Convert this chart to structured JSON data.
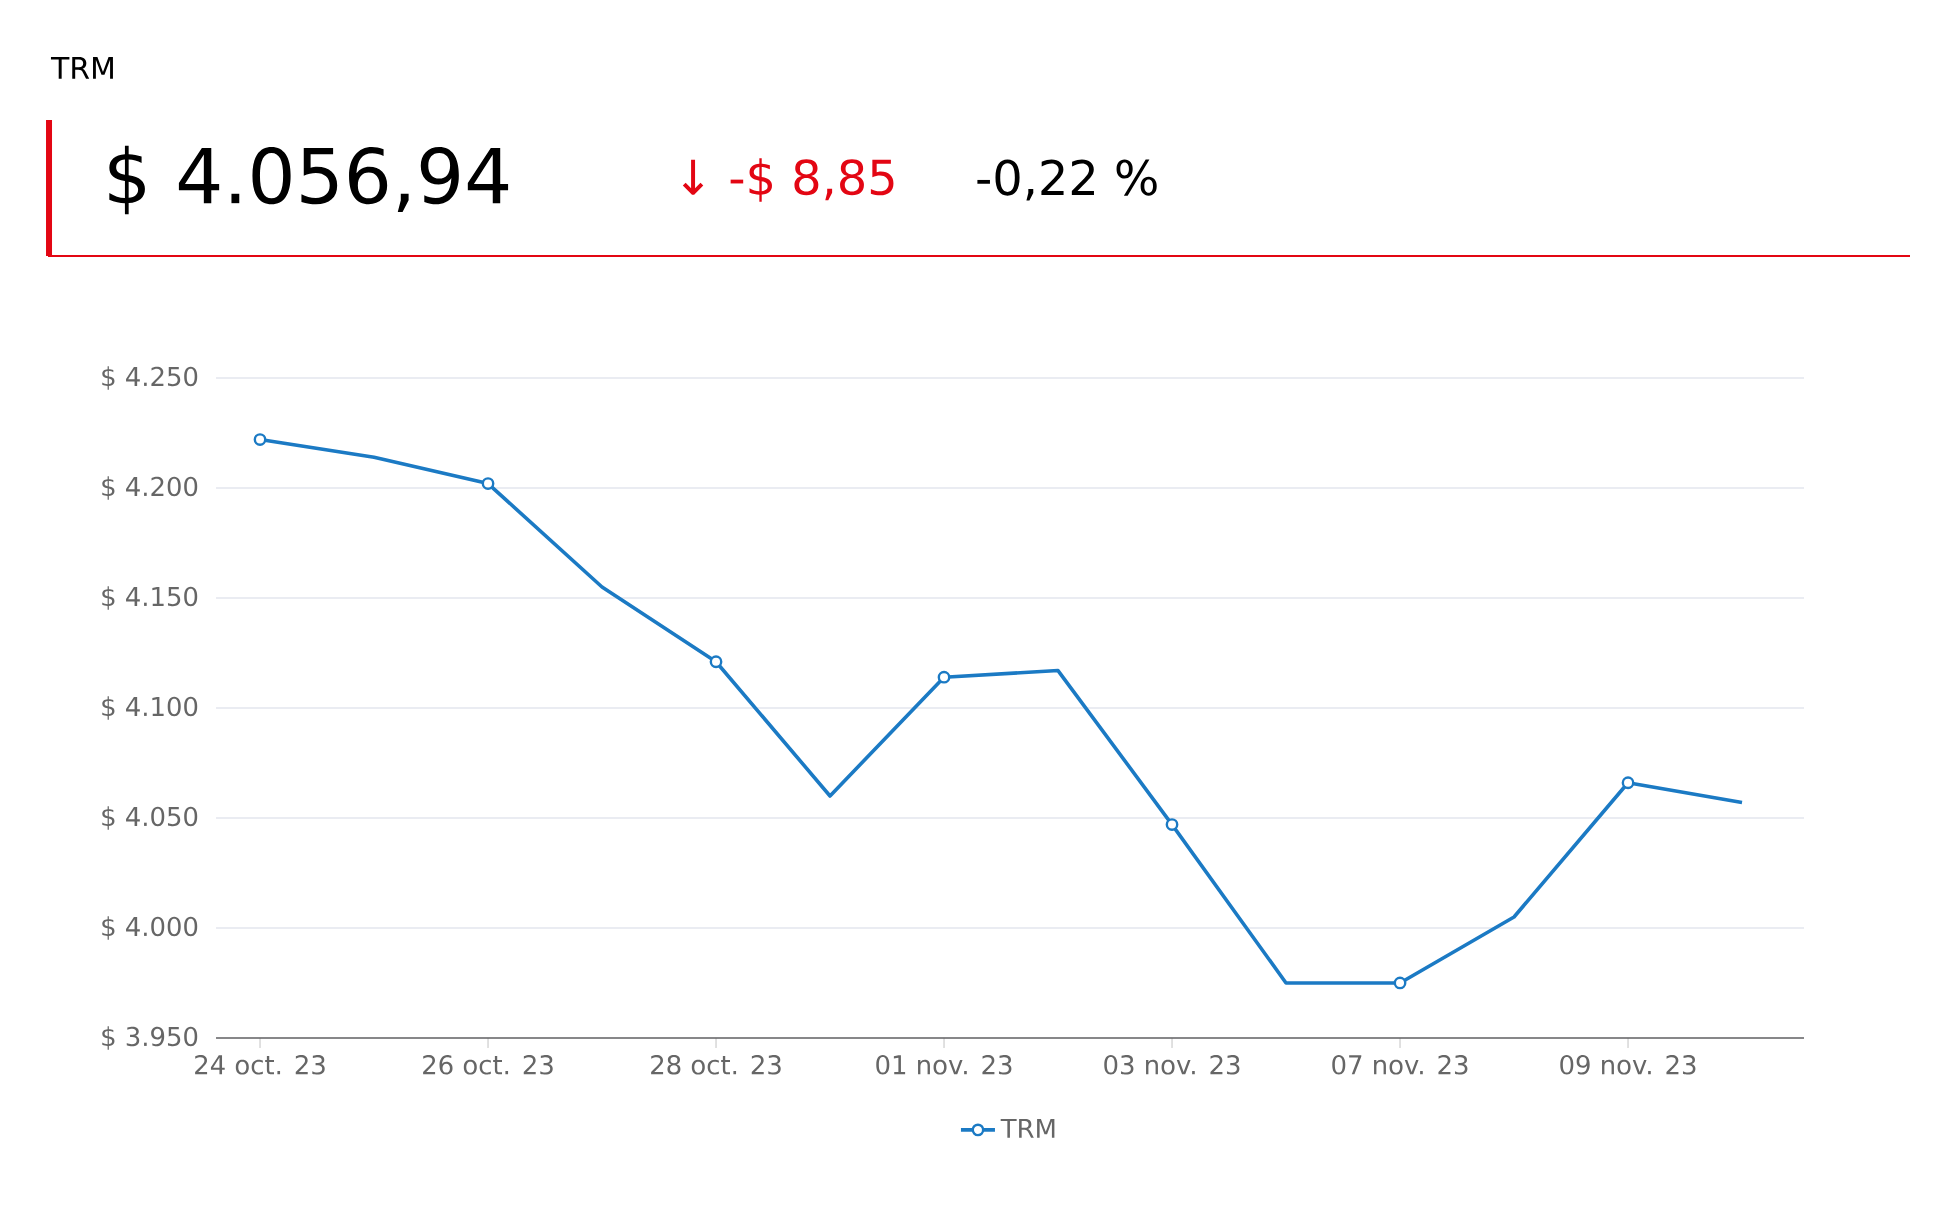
{
  "chart_data": {
    "type": "line",
    "title": "TRM",
    "annotations": [
      "$ 4.056,94",
      "↓ -$ 8,85",
      "-0,22 %"
    ],
    "categories": [
      "24 oct. 23",
      null,
      "26 oct. 23",
      null,
      "28 oct. 23",
      null,
      "01 nov. 23",
      null,
      "03 nov. 23",
      null,
      "07 nov. 23",
      null,
      "09 nov. 23",
      null
    ],
    "series": [
      {
        "name": "TRM",
        "color": "#1b7ac4",
        "values": [
          4222,
          4214,
          4202,
          4155,
          4121,
          4060,
          4114,
          4117,
          4047,
          3975,
          3975,
          4005,
          4066,
          4057
        ]
      }
    ],
    "ylim": [
      3950,
      4250
    ],
    "yticks": [
      {
        "value": 3950,
        "label": "$ 3.950"
      },
      {
        "value": 4000,
        "label": "$ 4.000"
      },
      {
        "value": 4050,
        "label": "$ 4.050"
      },
      {
        "value": 4100,
        "label": "$ 4.100"
      },
      {
        "value": 4150,
        "label": "$ 4.150"
      },
      {
        "value": 4200,
        "label": "$ 4.200"
      },
      {
        "value": 4250,
        "label": "$ 4.250"
      }
    ],
    "grid": "y",
    "legend": "bottom",
    "marker": "circle",
    "line_style": "solid"
  }
}
